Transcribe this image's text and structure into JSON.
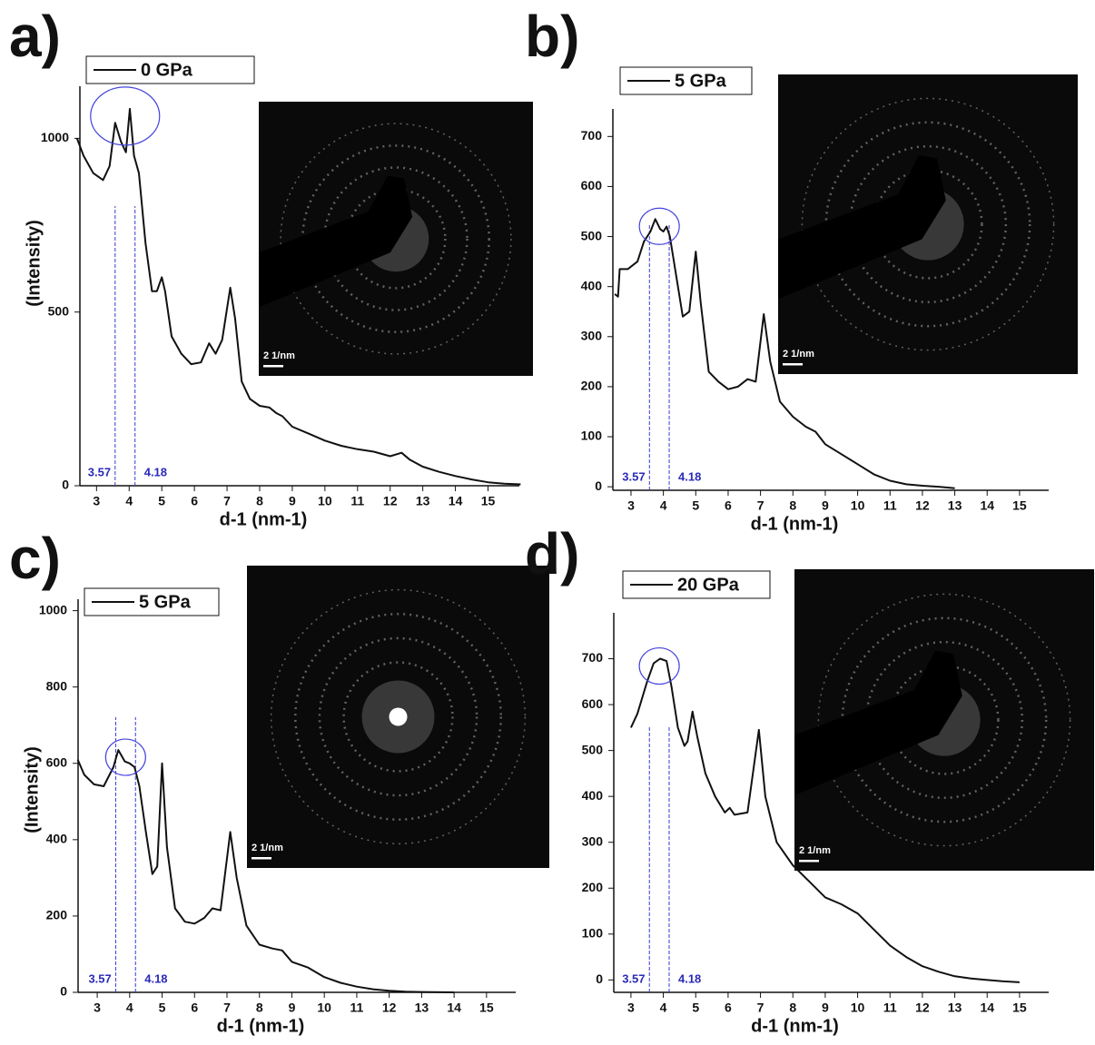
{
  "chart_data": [
    {
      "type": "line",
      "panel_label": "a)",
      "xlabel": "d-1 (nm-1)",
      "ylabel": "(Intensity)",
      "x": [
        2.4,
        2.6,
        2.9,
        3.2,
        3.4,
        3.57,
        3.75,
        3.9,
        4.02,
        4.15,
        4.3,
        4.5,
        4.7,
        4.85,
        5.0,
        5.1,
        5.3,
        5.6,
        5.9,
        6.2,
        6.45,
        6.65,
        6.85,
        7.1,
        7.25,
        7.45,
        7.7,
        8.0,
        8.3,
        8.5,
        8.7,
        9.0,
        9.5,
        10,
        10.5,
        11,
        11.5,
        12,
        12.35,
        12.6,
        13,
        13.5,
        14,
        14.5,
        15,
        15.5,
        16
      ],
      "series": [
        {
          "name": "0 GPa",
          "color": "#111111",
          "values": [
            1000,
            950,
            900,
            880,
            920,
            1045,
            990,
            960,
            1085,
            950,
            900,
            700,
            560,
            560,
            600,
            560,
            430,
            380,
            350,
            355,
            410,
            380,
            420,
            570,
            480,
            300,
            250,
            230,
            225,
            210,
            200,
            170,
            150,
            130,
            115,
            105,
            98,
            85,
            95,
            75,
            55,
            40,
            28,
            18,
            10,
            6,
            4
          ]
        }
      ],
      "vlines": [
        3.57,
        4.18
      ],
      "vline_color": "#3a3ad0",
      "xlim": [
        2.49,
        15.96
      ],
      "ylim": [
        0,
        1150
      ],
      "xticks": [
        3,
        4,
        5,
        6,
        7,
        8,
        9,
        10,
        11,
        12,
        13,
        14,
        15
      ],
      "yticks": [
        0,
        500,
        1000
      ],
      "inset_scale_label": "2 1/nm"
    },
    {
      "type": "line",
      "panel_label": "b)",
      "xlabel": "d-1 (nm-1)",
      "x": [
        2.5,
        2.6,
        2.65,
        2.9,
        3.2,
        3.4,
        3.6,
        3.75,
        3.9,
        4.0,
        4.1,
        4.2,
        4.4,
        4.6,
        4.8,
        5.0,
        5.15,
        5.4,
        5.7,
        6.0,
        6.3,
        6.6,
        6.85,
        7.1,
        7.3,
        7.6,
        8.0,
        8.4,
        8.7,
        9.0,
        9.5,
        10,
        10.5,
        11,
        11.5,
        12,
        12.5,
        13
      ],
      "series": [
        {
          "name": "5 GPa",
          "color": "#111111",
          "values": [
            385,
            380,
            435,
            435,
            450,
            490,
            510,
            535,
            515,
            510,
            520,
            500,
            420,
            340,
            350,
            470,
            370,
            230,
            210,
            195,
            200,
            215,
            210,
            345,
            250,
            170,
            140,
            120,
            110,
            85,
            65,
            45,
            25,
            12,
            5,
            2,
            0,
            -3
          ]
        }
      ],
      "vlines": [
        3.57,
        4.18
      ],
      "vline_color": "#3a3ad0",
      "xlim": [
        2.44,
        15.9
      ],
      "ylim": [
        -7,
        755
      ],
      "xticks": [
        3,
        4,
        5,
        6,
        7,
        8,
        9,
        10,
        11,
        12,
        13,
        14,
        15
      ],
      "yticks": [
        0,
        100,
        200,
        300,
        400,
        500,
        600,
        700
      ],
      "inset_scale_label": "2 1/nm"
    },
    {
      "type": "line",
      "panel_label": "c)",
      "xlabel": "d-1 (nm-1)",
      "ylabel": "(Intensity)",
      "x": [
        2.4,
        2.6,
        2.9,
        3.2,
        3.5,
        3.65,
        3.85,
        4.0,
        4.15,
        4.3,
        4.5,
        4.7,
        4.85,
        5.0,
        5.15,
        5.4,
        5.7,
        6.0,
        6.3,
        6.55,
        6.8,
        7.1,
        7.3,
        7.6,
        8.0,
        8.4,
        8.7,
        9.0,
        9.5,
        10,
        10.5,
        11,
        11.5,
        12,
        12.5,
        13,
        14
      ],
      "series": [
        {
          "name": "5 GPa",
          "color": "#111111",
          "values": [
            610,
            570,
            545,
            540,
            590,
            635,
            605,
            600,
            590,
            540,
            420,
            310,
            330,
            600,
            380,
            220,
            185,
            180,
            195,
            220,
            215,
            420,
            300,
            175,
            125,
            115,
            110,
            80,
            65,
            40,
            25,
            15,
            8,
            4,
            2,
            1,
            0
          ]
        }
      ],
      "vlines": [
        3.57,
        4.18
      ],
      "vline_color": "#3a3ad0",
      "xlim": [
        2.41,
        15.9
      ],
      "ylim": [
        0,
        1030
      ],
      "xticks": [
        3,
        4,
        5,
        6,
        7,
        8,
        9,
        10,
        11,
        12,
        13,
        14,
        15
      ],
      "yticks": [
        0,
        200,
        400,
        600,
        800,
        1000
      ],
      "inset_scale_label": "2 1/nm"
    },
    {
      "type": "line",
      "panel_label": "d)",
      "xlabel": "d-1 (nm-1)",
      "x": [
        3.0,
        3.2,
        3.5,
        3.7,
        3.9,
        4.1,
        4.25,
        4.45,
        4.65,
        4.75,
        4.9,
        5.05,
        5.3,
        5.6,
        5.9,
        6.05,
        6.2,
        6.6,
        6.95,
        7.15,
        7.5,
        8.0,
        8.5,
        9.0,
        9.5,
        10,
        10.5,
        11,
        11.5,
        12,
        12.5,
        13,
        13.5,
        14,
        14.5,
        15
      ],
      "series": [
        {
          "name": "20 GPa",
          "color": "#111111",
          "values": [
            550,
            580,
            650,
            690,
            700,
            695,
            640,
            550,
            510,
            520,
            585,
            530,
            450,
            400,
            365,
            375,
            360,
            365,
            545,
            400,
            300,
            250,
            215,
            180,
            165,
            145,
            110,
            75,
            50,
            30,
            18,
            8,
            3,
            0,
            -3,
            -5
          ]
        }
      ],
      "vlines": [
        3.57,
        4.18
      ],
      "vline_color": "#3a3ad0",
      "xlim": [
        2.47,
        15.9
      ],
      "ylim": [
        -27,
        800
      ],
      "xticks": [
        3,
        4,
        5,
        6,
        7,
        8,
        9,
        10,
        11,
        12,
        13,
        14,
        15
      ],
      "yticks": [
        0,
        100,
        200,
        300,
        400,
        500,
        600,
        700
      ],
      "inset_scale_label": "2 1/nm"
    }
  ]
}
